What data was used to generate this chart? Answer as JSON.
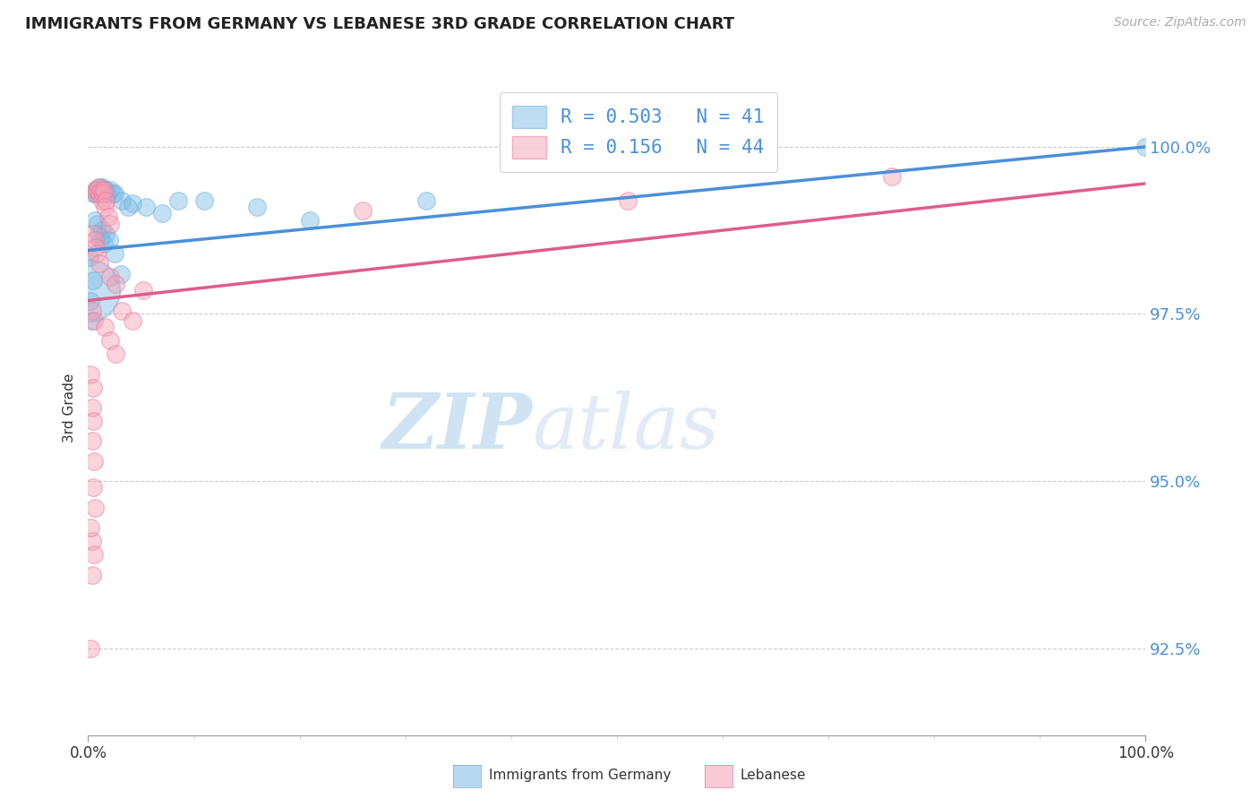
{
  "title": "IMMIGRANTS FROM GERMANY VS LEBANESE 3RD GRADE CORRELATION CHART",
  "source": "Source: ZipAtlas.com",
  "ylabel": "3rd Grade",
  "xlim": [
    0.0,
    100.0
  ],
  "ylim": [
    91.2,
    101.0
  ],
  "yticks": [
    92.5,
    95.0,
    97.5,
    100.0
  ],
  "blue_R": 0.503,
  "blue_N": 41,
  "pink_R": 0.156,
  "pink_N": 44,
  "blue_color": "#7dbde8",
  "pink_color": "#f4a0b5",
  "blue_edge_color": "#6baed6",
  "pink_edge_color": "#e8789a",
  "blue_line_color": "#4a90d9",
  "pink_line_color": "#e05c8a",
  "watermark_zip": "ZIP",
  "watermark_atlas": "atlas",
  "blue_scatter": [
    [
      0.5,
      99.3
    ],
    [
      0.7,
      99.3
    ],
    [
      0.8,
      99.35
    ],
    [
      1.0,
      99.3
    ],
    [
      1.1,
      99.4
    ],
    [
      1.2,
      99.3
    ],
    [
      1.25,
      99.35
    ],
    [
      1.35,
      99.4
    ],
    [
      1.4,
      99.3
    ],
    [
      1.5,
      99.35
    ],
    [
      1.55,
      99.3
    ],
    [
      1.7,
      99.35
    ],
    [
      1.85,
      99.3
    ],
    [
      2.1,
      99.35
    ],
    [
      2.3,
      99.3
    ],
    [
      2.5,
      99.3
    ],
    [
      3.2,
      99.2
    ],
    [
      3.8,
      99.1
    ],
    [
      0.6,
      98.9
    ],
    [
      0.9,
      98.85
    ],
    [
      1.0,
      98.7
    ],
    [
      1.15,
      98.6
    ],
    [
      1.3,
      98.75
    ],
    [
      1.5,
      98.55
    ],
    [
      1.7,
      98.7
    ],
    [
      2.0,
      98.6
    ],
    [
      2.5,
      98.4
    ],
    [
      3.1,
      98.1
    ],
    [
      4.2,
      99.15
    ],
    [
      5.5,
      99.1
    ],
    [
      7.0,
      99.0
    ],
    [
      8.5,
      99.2
    ],
    [
      11.0,
      99.2
    ],
    [
      16.0,
      99.1
    ],
    [
      21.0,
      98.9
    ],
    [
      0.3,
      97.4
    ],
    [
      100.0,
      100.0
    ],
    [
      32.0,
      99.2
    ],
    [
      0.25,
      97.7
    ],
    [
      0.5,
      98.0
    ],
    [
      0.15,
      98.35
    ]
  ],
  "pink_scatter": [
    [
      0.6,
      99.35
    ],
    [
      0.75,
      99.3
    ],
    [
      0.85,
      99.35
    ],
    [
      1.0,
      99.4
    ],
    [
      1.1,
      99.3
    ],
    [
      1.2,
      99.35
    ],
    [
      1.3,
      99.2
    ],
    [
      1.4,
      99.3
    ],
    [
      1.5,
      99.35
    ],
    [
      1.6,
      99.1
    ],
    [
      1.7,
      99.2
    ],
    [
      1.9,
      98.95
    ],
    [
      2.1,
      98.85
    ],
    [
      0.5,
      98.7
    ],
    [
      0.65,
      98.6
    ],
    [
      0.75,
      98.5
    ],
    [
      0.85,
      98.4
    ],
    [
      1.05,
      98.25
    ],
    [
      2.1,
      98.05
    ],
    [
      2.6,
      97.95
    ],
    [
      0.35,
      97.55
    ],
    [
      0.55,
      97.4
    ],
    [
      1.55,
      97.3
    ],
    [
      2.1,
      97.1
    ],
    [
      2.6,
      96.9
    ],
    [
      0.25,
      96.6
    ],
    [
      0.45,
      96.4
    ],
    [
      3.2,
      97.55
    ],
    [
      4.2,
      97.4
    ],
    [
      0.35,
      95.6
    ],
    [
      0.55,
      95.3
    ],
    [
      0.45,
      94.9
    ],
    [
      0.65,
      94.6
    ],
    [
      0.35,
      94.1
    ],
    [
      0.55,
      93.9
    ],
    [
      26.0,
      99.05
    ],
    [
      51.0,
      99.2
    ],
    [
      76.0,
      99.55
    ],
    [
      0.25,
      92.5
    ],
    [
      5.2,
      97.85
    ],
    [
      0.35,
      96.1
    ],
    [
      0.45,
      95.9
    ],
    [
      0.25,
      94.3
    ],
    [
      0.35,
      93.6
    ]
  ],
  "blue_marker_size": 200,
  "pink_marker_size": 200,
  "large_blue_x": 0.05,
  "large_blue_y": 97.85,
  "large_blue_size": 2500,
  "blue_line_x0": 0,
  "blue_line_y0": 98.45,
  "blue_line_x1": 100,
  "blue_line_y1": 100.0,
  "pink_line_x0": 0,
  "pink_line_y0": 97.7,
  "pink_line_x1": 100,
  "pink_line_y1": 99.45
}
